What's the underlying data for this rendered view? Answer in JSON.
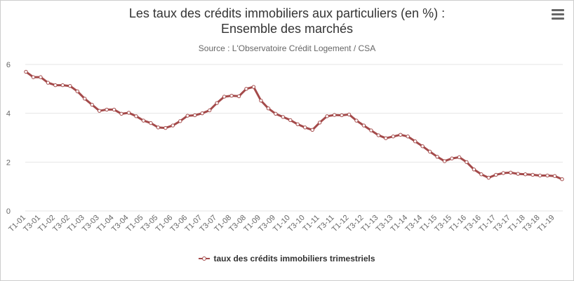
{
  "title_line1": "Les taux des crédits immobiliers aux particuliers (en %) :",
  "title_line2": "Ensemble des marchés",
  "subtitle": "Source : L'Observatoire Crédit Logement / CSA",
  "menu_icon": "hamburger-menu-icon",
  "colors": {
    "series": "#a44a4a",
    "grid": "#e6e6e6",
    "axis_text": "#666666"
  },
  "chart_data": {
    "type": "line",
    "ylim": [
      0,
      6
    ],
    "yticks": [
      0,
      2,
      4,
      6
    ],
    "grid": true,
    "legend": "bottom-center",
    "x": [
      "T1-01",
      "T2-01",
      "T3-01",
      "T4-01",
      "T1-02",
      "T2-02",
      "T3-02",
      "T4-02",
      "T1-03",
      "T2-03",
      "T3-03",
      "T4-03",
      "T1-04",
      "T2-04",
      "T3-04",
      "T4-04",
      "T1-05",
      "T2-05",
      "T3-05",
      "T4-05",
      "T1-06",
      "T2-06",
      "T3-06",
      "T4-06",
      "T1-07",
      "T2-07",
      "T3-07",
      "T4-07",
      "T1-08",
      "T2-08",
      "T3-08",
      "T4-08",
      "T1-09",
      "T2-09",
      "T3-09",
      "T4-09",
      "T1-10",
      "T2-10",
      "T3-10",
      "T4-10",
      "T1-11",
      "T2-11",
      "T3-11",
      "T4-11",
      "T1-12",
      "T2-12",
      "T3-12",
      "T4-12",
      "T1-13",
      "T2-13",
      "T3-13",
      "T4-13",
      "T1-14",
      "T2-14",
      "T3-14",
      "T4-14",
      "T1-15",
      "T2-15",
      "T3-15",
      "T4-15",
      "T1-16",
      "T2-16",
      "T3-16",
      "T4-16",
      "T1-17",
      "T2-17",
      "T3-17",
      "T4-17",
      "T1-18",
      "T2-18",
      "T3-18",
      "T4-18",
      "T1-19",
      "T2-19"
    ],
    "xtick_labels": [
      "T1-01",
      "T3-01",
      "T1-02",
      "T3-02",
      "T1-03",
      "T3-03",
      "T1-04",
      "T3-04",
      "T1-05",
      "T3-05",
      "T1-06",
      "T3-06",
      "T1-07",
      "T3-07",
      "T1-08",
      "T3-08",
      "T1-09",
      "T3-09",
      "T1-10",
      "T3-10",
      "T1-11",
      "T3-11",
      "T1-12",
      "T3-12",
      "T1-13",
      "T3-13",
      "T1-14",
      "T3-14",
      "T1-15",
      "T3-15",
      "T1-16",
      "T3-16",
      "T1-17",
      "T3-17",
      "T1-18",
      "T3-18",
      "T1-19"
    ],
    "series": [
      {
        "name": "taux des crédits immobiliers trimestriels",
        "values": [
          5.7,
          5.48,
          5.48,
          5.25,
          5.15,
          5.15,
          5.12,
          4.9,
          4.6,
          4.35,
          4.1,
          4.15,
          4.15,
          3.98,
          4.02,
          3.88,
          3.7,
          3.6,
          3.42,
          3.4,
          3.5,
          3.68,
          3.9,
          3.92,
          4.0,
          4.12,
          4.42,
          4.68,
          4.72,
          4.7,
          5.0,
          5.08,
          4.52,
          4.2,
          3.98,
          3.85,
          3.72,
          3.55,
          3.42,
          3.32,
          3.62,
          3.88,
          3.93,
          3.92,
          3.95,
          3.7,
          3.5,
          3.3,
          3.1,
          2.98,
          3.05,
          3.12,
          3.05,
          2.85,
          2.65,
          2.43,
          2.22,
          2.04,
          2.15,
          2.2,
          2.0,
          1.7,
          1.5,
          1.36,
          1.48,
          1.55,
          1.57,
          1.52,
          1.5,
          1.48,
          1.45,
          1.45,
          1.43,
          1.3
        ]
      }
    ]
  }
}
